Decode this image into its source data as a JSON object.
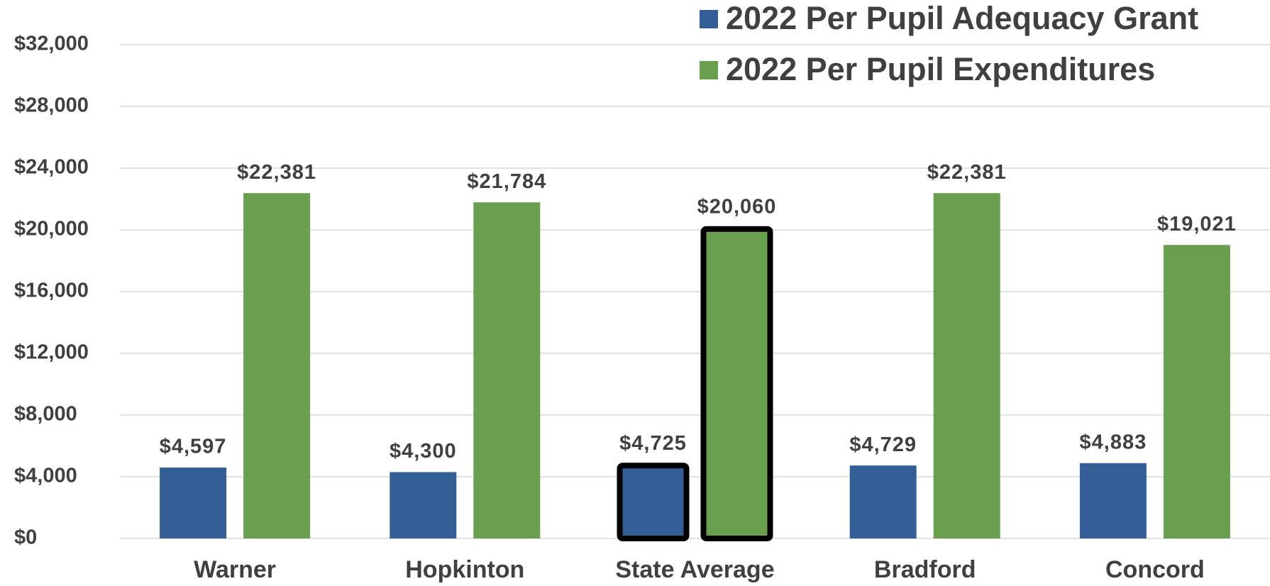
{
  "chart_data": {
    "type": "bar",
    "categories": [
      "Warner",
      "Hopkinton",
      "State Average",
      "Bradford",
      "Concord"
    ],
    "series": [
      {
        "name": "2022 Per Pupil Adequacy Grant",
        "color": "#335f96",
        "values": [
          4597,
          4300,
          4725,
          4729,
          4883
        ],
        "value_labels": [
          "$4,597",
          "$4,300",
          "$4,725",
          "$4,729",
          "$4,883"
        ],
        "edgecolors": [
          null,
          null,
          "#000000",
          null,
          null
        ]
      },
      {
        "name": "2022 Per Pupil Expenditures",
        "color": "#6a9f4f",
        "values": [
          22381,
          21784,
          20060,
          22381,
          19021
        ],
        "value_labels": [
          "$22,381",
          "$21,784",
          "$20,060",
          "$22,381",
          "$19,021"
        ],
        "edgecolors": [
          null,
          null,
          "#000000",
          null,
          null
        ]
      }
    ],
    "ylim": [
      0,
      32000
    ],
    "yticks": [
      {
        "value": 0,
        "label": "$0"
      },
      {
        "value": 4000,
        "label": "$4,000"
      },
      {
        "value": 8000,
        "label": "$8,000"
      },
      {
        "value": 12000,
        "label": "$12,000"
      },
      {
        "value": 16000,
        "label": "$16,000"
      },
      {
        "value": 20000,
        "label": "$20,000"
      },
      {
        "value": 24000,
        "label": "$24,000"
      },
      {
        "value": 28000,
        "label": "$28,000"
      },
      {
        "value": 32000,
        "label": "$32,000"
      }
    ],
    "grid": true,
    "legend": "upper right"
  }
}
